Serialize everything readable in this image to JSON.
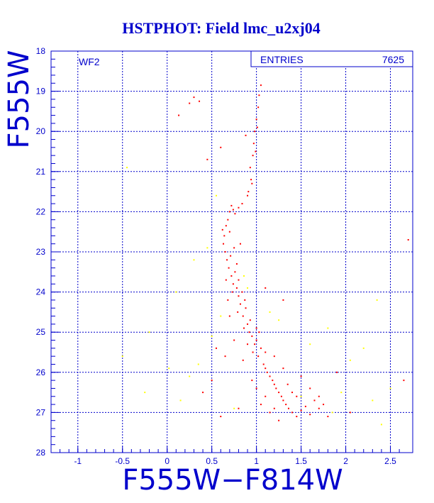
{
  "chart_data": {
    "type": "scatter",
    "title": "HSTPHOT: Field lmc_u2xj04",
    "xlabel": "F555W−F814W",
    "ylabel": "F555W",
    "panel_label": "WF2",
    "stats": {
      "label": "ENTRIES",
      "value": "7625"
    },
    "xlim": [
      -1.3,
      2.75
    ],
    "ylim": [
      28,
      18
    ],
    "y_inverted": true,
    "grid": true,
    "x_ticks": [
      -1,
      -0.5,
      0,
      0.5,
      1,
      1.5,
      2,
      2.5
    ],
    "x_tick_labels": [
      "-1",
      "-0.5",
      "0",
      "0.5",
      "1",
      "1.5",
      "2",
      "2.5"
    ],
    "y_ticks": [
      18,
      19,
      20,
      21,
      22,
      23,
      24,
      25,
      26,
      27,
      28
    ],
    "y_tick_labels": [
      "18",
      "19",
      "20",
      "21",
      "22",
      "23",
      "24",
      "25",
      "26",
      "27",
      "28"
    ],
    "series": [
      {
        "color": "#ff0000",
        "points": [
          [
            0.62,
            22.45
          ],
          [
            0.64,
            22.6
          ],
          [
            0.66,
            22.35
          ],
          [
            0.68,
            22.2
          ],
          [
            0.7,
            22.5
          ],
          [
            0.63,
            22.8
          ],
          [
            0.65,
            23.0
          ],
          [
            0.67,
            23.2
          ],
          [
            0.69,
            23.4
          ],
          [
            0.71,
            23.1
          ],
          [
            0.72,
            23.6
          ],
          [
            0.74,
            23.8
          ],
          [
            0.76,
            23.5
          ],
          [
            0.78,
            23.9
          ],
          [
            0.73,
            24.0
          ],
          [
            0.8,
            24.1
          ],
          [
            0.82,
            24.3
          ],
          [
            0.79,
            24.5
          ],
          [
            0.85,
            24.6
          ],
          [
            0.88,
            24.4
          ],
          [
            0.9,
            24.8
          ],
          [
            0.86,
            24.9
          ],
          [
            0.92,
            25.0
          ],
          [
            0.95,
            25.1
          ],
          [
            0.98,
            25.3
          ],
          [
            1.0,
            25.2
          ],
          [
            0.96,
            25.5
          ],
          [
            1.02,
            25.6
          ],
          [
            1.05,
            25.4
          ],
          [
            1.08,
            25.8
          ],
          [
            1.1,
            25.9
          ],
          [
            1.12,
            26.0
          ],
          [
            1.15,
            26.1
          ],
          [
            1.18,
            26.2
          ],
          [
            1.2,
            26.3
          ],
          [
            1.22,
            26.4
          ],
          [
            1.25,
            26.5
          ],
          [
            1.28,
            26.6
          ],
          [
            1.3,
            26.7
          ],
          [
            1.33,
            26.8
          ],
          [
            1.36,
            26.9
          ],
          [
            1.4,
            27.0
          ],
          [
            1.45,
            27.1
          ],
          [
            1.5,
            26.95
          ],
          [
            1.55,
            26.85
          ],
          [
            1.6,
            27.05
          ],
          [
            1.65,
            26.7
          ],
          [
            1.7,
            26.9
          ],
          [
            1.75,
            26.8
          ],
          [
            1.8,
            27.1
          ],
          [
            1.1,
            26.6
          ],
          [
            1.2,
            26.9
          ],
          [
            1.0,
            26.4
          ],
          [
            0.95,
            26.2
          ],
          [
            1.35,
            26.3
          ],
          [
            1.4,
            26.5
          ],
          [
            1.15,
            27.0
          ],
          [
            1.25,
            27.2
          ],
          [
            1.05,
            26.8
          ],
          [
            1.45,
            26.6
          ],
          [
            0.75,
            22.9
          ],
          [
            0.78,
            23.3
          ],
          [
            0.8,
            23.7
          ],
          [
            0.84,
            24.0
          ],
          [
            0.87,
            24.2
          ],
          [
            0.93,
            24.7
          ],
          [
            1.0,
            24.9
          ],
          [
            1.03,
            25.0
          ],
          [
            0.9,
            25.3
          ],
          [
            1.1,
            25.5
          ],
          [
            0.7,
            22.0
          ],
          [
            0.72,
            21.85
          ],
          [
            0.74,
            21.95
          ],
          [
            0.76,
            22.05
          ],
          [
            0.8,
            21.9
          ],
          [
            0.84,
            21.8
          ],
          [
            0.9,
            21.6
          ],
          [
            0.95,
            21.3
          ],
          [
            0.93,
            20.9
          ],
          [
            0.96,
            20.6
          ],
          [
            0.97,
            20.3
          ],
          [
            0.98,
            20.0
          ],
          [
            1.0,
            19.7
          ],
          [
            1.02,
            19.4
          ],
          [
            1.03,
            19.1
          ],
          [
            1.05,
            18.85
          ],
          [
            1.01,
            19.9
          ],
          [
            0.99,
            20.5
          ],
          [
            0.94,
            21.2
          ],
          [
            0.91,
            21.5
          ],
          [
            0.36,
            19.25
          ],
          [
            0.3,
            19.15
          ],
          [
            0.25,
            19.3
          ],
          [
            0.13,
            19.6
          ],
          [
            0.88,
            20.1
          ],
          [
            0.6,
            20.4
          ],
          [
            0.45,
            20.7
          ],
          [
            0.82,
            22.8
          ],
          [
            1.1,
            23.9
          ],
          [
            1.3,
            24.2
          ],
          [
            0.65,
            25.6
          ],
          [
            0.55,
            25.4
          ],
          [
            0.5,
            26.2
          ],
          [
            0.4,
            26.5
          ],
          [
            2.7,
            22.7
          ],
          [
            2.65,
            26.2
          ],
          [
            1.9,
            26.0
          ],
          [
            2.05,
            27.0
          ],
          [
            0.6,
            27.1
          ],
          [
            0.8,
            26.9
          ],
          [
            1.2,
            25.6
          ],
          [
            1.3,
            25.9
          ],
          [
            1.5,
            26.1
          ],
          [
            1.6,
            26.4
          ],
          [
            1.7,
            26.6
          ],
          [
            0.85,
            25.7
          ],
          [
            0.75,
            25.2
          ],
          [
            0.7,
            24.6
          ],
          [
            0.68,
            24.2
          ],
          [
            0.66,
            23.7
          ]
        ]
      },
      {
        "color": "#ffff00",
        "points": [
          [
            0.55,
            21.6
          ],
          [
            0.45,
            22.9
          ],
          [
            0.3,
            23.2
          ],
          [
            0.1,
            24.0
          ],
          [
            -0.2,
            25.0
          ],
          [
            -0.5,
            25.6
          ],
          [
            0.35,
            25.8
          ],
          [
            0.25,
            26.1
          ],
          [
            0.15,
            26.7
          ],
          [
            0.02,
            25.9
          ],
          [
            1.6,
            25.3
          ],
          [
            1.8,
            24.9
          ],
          [
            2.2,
            25.4
          ],
          [
            2.35,
            24.2
          ],
          [
            2.5,
            26.4
          ],
          [
            2.3,
            26.7
          ],
          [
            2.05,
            25.7
          ],
          [
            1.95,
            26.5
          ],
          [
            0.86,
            23.6
          ],
          [
            0.9,
            23.9
          ],
          [
            1.15,
            24.5
          ],
          [
            1.25,
            24.7
          ],
          [
            -0.45,
            20.9
          ],
          [
            0.6,
            24.6
          ],
          [
            0.5,
            25.1
          ],
          [
            1.5,
            26.6
          ],
          [
            1.85,
            27.0
          ],
          [
            2.4,
            27.3
          ],
          [
            -0.25,
            26.5
          ],
          [
            0.75,
            26.9
          ]
        ]
      }
    ]
  }
}
